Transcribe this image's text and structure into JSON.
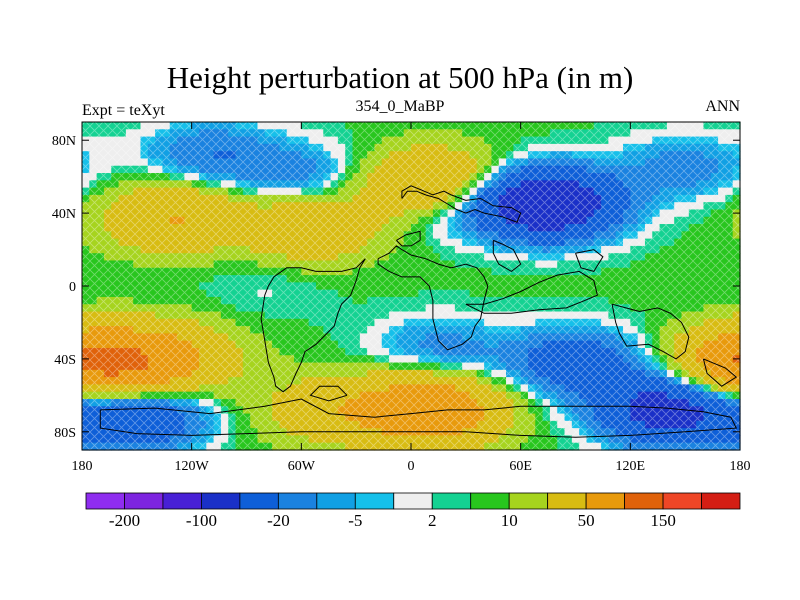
{
  "chart_data": {
    "type": "heatmap",
    "title": "Height perturbation at 500 hPa (in m)",
    "left_string": "Expt = teXyt",
    "center_string": "354_0_MaBP",
    "right_string": "ANN",
    "x_ticks": [
      {
        "value": -180,
        "label": "180"
      },
      {
        "value": -120,
        "label": "120W"
      },
      {
        "value": -60,
        "label": "60W"
      },
      {
        "value": 0,
        "label": "0"
      },
      {
        "value": 60,
        "label": "60E"
      },
      {
        "value": 120,
        "label": "120E"
      },
      {
        "value": 180,
        "label": "180"
      }
    ],
    "y_ticks": [
      {
        "value": 80,
        "label": "80N"
      },
      {
        "value": 40,
        "label": "40N"
      },
      {
        "value": 0,
        "label": "0"
      },
      {
        "value": -40,
        "label": "40S"
      },
      {
        "value": -80,
        "label": "80S"
      }
    ],
    "xlim": [
      -180,
      180
    ],
    "ylim": [
      -90,
      90
    ],
    "colorbar": {
      "levels": [
        -200,
        -150,
        -100,
        -50,
        -20,
        -10,
        -5,
        -2,
        2,
        5,
        10,
        20,
        50,
        100,
        150,
        200
      ],
      "labels": [
        {
          "level": -200,
          "label": "-200"
        },
        {
          "level": -100,
          "label": "-100"
        },
        {
          "level": -20,
          "label": "-20"
        },
        {
          "level": -5,
          "label": "-5"
        },
        {
          "level": 2,
          "label": "2"
        },
        {
          "level": 10,
          "label": "10"
        },
        {
          "level": 50,
          "label": "50"
        },
        {
          "level": 150,
          "label": "150"
        }
      ],
      "colors": [
        "#8f2df0",
        "#7d24e0",
        "#4820d6",
        "#1a30c8",
        "#0e5fd8",
        "#1a82e0",
        "#11a0e4",
        "#16c0ea",
        "#eeeeee",
        "#14d292",
        "#28c61e",
        "#a6d41e",
        "#d8bc12",
        "#e89a0c",
        "#e0620a",
        "#ee4626",
        "#d41e14"
      ]
    },
    "highs": [
      {
        "lon": -130,
        "lat": 38,
        "value": 45
      },
      {
        "lon": -55,
        "lat": 32,
        "value": 38
      },
      {
        "lon": 12,
        "lat": 55,
        "value": 70
      },
      {
        "lon": -165,
        "lat": -42,
        "value": 70
      },
      {
        "lon": -130,
        "lat": -40,
        "value": 40
      },
      {
        "lon": 10,
        "lat": -68,
        "value": 85
      },
      {
        "lon": -45,
        "lat": -68,
        "value": 30
      },
      {
        "lon": 178,
        "lat": -42,
        "value": 40
      }
    ],
    "lows": [
      {
        "lon": 75,
        "lat": 45,
        "value": -100
      },
      {
        "lon": 20,
        "lat": 48,
        "value": -35
      },
      {
        "lon": -110,
        "lat": 72,
        "value": -25
      },
      {
        "lon": -60,
        "lat": 60,
        "value": -20
      },
      {
        "lon": 150,
        "lat": 65,
        "value": -20
      },
      {
        "lon": 90,
        "lat": -42,
        "value": -40
      },
      {
        "lon": 15,
        "lat": -35,
        "value": -20
      },
      {
        "lon": -150,
        "lat": -72,
        "value": -50
      },
      {
        "lon": 140,
        "lat": -68,
        "value": -75
      },
      {
        "lon": -80,
        "lat": 0,
        "value": -5
      }
    ],
    "background": 6,
    "coastlines": [
      [
        [
          -5,
          48
        ],
        [
          -2,
          52
        ],
        [
          3,
          52
        ],
        [
          8,
          50
        ],
        [
          15,
          48
        ],
        [
          20,
          45
        ],
        [
          25,
          42
        ],
        [
          30,
          40
        ],
        [
          35,
          42
        ],
        [
          40,
          40
        ],
        [
          50,
          38
        ],
        [
          58,
          35
        ],
        [
          60,
          40
        ],
        [
          55,
          43
        ],
        [
          45,
          44
        ],
        [
          38,
          48
        ],
        [
          30,
          47
        ],
        [
          22,
          50
        ],
        [
          18,
          52
        ],
        [
          12,
          50
        ],
        [
          5,
          53
        ],
        [
          0,
          55
        ],
        [
          -5,
          52
        ],
        [
          -5,
          48
        ]
      ],
      [
        [
          -18,
          15
        ],
        [
          -12,
          18
        ],
        [
          -8,
          22
        ],
        [
          -5,
          20
        ],
        [
          0,
          17
        ],
        [
          8,
          15
        ],
        [
          15,
          12
        ],
        [
          22,
          10
        ],
        [
          30,
          12
        ],
        [
          36,
          10
        ],
        [
          40,
          5
        ],
        [
          42,
          0
        ],
        [
          40,
          -8
        ],
        [
          38,
          -18
        ],
        [
          35,
          -22
        ],
        [
          33,
          -28
        ],
        [
          28,
          -32
        ],
        [
          20,
          -35
        ],
        [
          15,
          -30
        ],
        [
          12,
          -18
        ],
        [
          12,
          -8
        ],
        [
          10,
          0
        ],
        [
          5,
          5
        ],
        [
          -5,
          5
        ],
        [
          -12,
          8
        ],
        [
          -18,
          12
        ],
        [
          -18,
          15
        ]
      ],
      [
        [
          -25,
          15
        ],
        [
          -28,
          10
        ],
        [
          -30,
          3
        ],
        [
          -33,
          -5
        ],
        [
          -38,
          -10
        ],
        [
          -40,
          -15
        ],
        [
          -42,
          -22
        ],
        [
          -48,
          -28
        ],
        [
          -52,
          -32
        ],
        [
          -58,
          -36
        ],
        [
          -60,
          -42
        ],
        [
          -63,
          -48
        ],
        [
          -66,
          -55
        ],
        [
          -70,
          -58
        ],
        [
          -74,
          -55
        ],
        [
          -75,
          -50
        ],
        [
          -78,
          -42
        ],
        [
          -80,
          -30
        ],
        [
          -82,
          -18
        ],
        [
          -80,
          -5
        ],
        [
          -78,
          0
        ],
        [
          -75,
          5
        ],
        [
          -68,
          10
        ],
        [
          -60,
          10
        ],
        [
          -52,
          8
        ],
        [
          -45,
          8
        ],
        [
          -38,
          8
        ],
        [
          -30,
          10
        ],
        [
          -25,
          15
        ]
      ],
      [
        [
          -8,
          25
        ],
        [
          -3,
          28
        ],
        [
          5,
          30
        ],
        [
          5,
          25
        ],
        [
          0,
          22
        ],
        [
          -5,
          22
        ],
        [
          -8,
          25
        ]
      ],
      [
        [
          45,
          25
        ],
        [
          50,
          23
        ],
        [
          56,
          20
        ],
        [
          60,
          12
        ],
        [
          55,
          8
        ],
        [
          48,
          12
        ],
        [
          45,
          18
        ],
        [
          45,
          25
        ]
      ],
      [
        [
          90,
          18
        ],
        [
          100,
          20
        ],
        [
          105,
          16
        ],
        [
          100,
          8
        ],
        [
          93,
          10
        ],
        [
          90,
          18
        ]
      ],
      [
        [
          110,
          -10
        ],
        [
          125,
          -14
        ],
        [
          135,
          -12
        ],
        [
          142,
          -15
        ],
        [
          148,
          -20
        ],
        [
          152,
          -28
        ],
        [
          150,
          -36
        ],
        [
          145,
          -40
        ],
        [
          138,
          -36
        ],
        [
          130,
          -32
        ],
        [
          118,
          -33
        ],
        [
          114,
          -26
        ],
        [
          112,
          -20
        ],
        [
          110,
          -10
        ]
      ],
      [
        [
          30,
          -10
        ],
        [
          40,
          -10
        ],
        [
          50,
          -7
        ],
        [
          60,
          -3
        ],
        [
          70,
          2
        ],
        [
          80,
          6
        ],
        [
          92,
          8
        ],
        [
          100,
          3
        ],
        [
          102,
          -5
        ],
        [
          95,
          -8
        ],
        [
          85,
          -12
        ],
        [
          70,
          -13
        ],
        [
          55,
          -15
        ],
        [
          40,
          -15
        ],
        [
          30,
          -10
        ]
      ],
      [
        [
          -170,
          -68
        ],
        [
          -140,
          -67
        ],
        [
          -110,
          -70
        ],
        [
          -80,
          -66
        ],
        [
          -60,
          -62
        ],
        [
          -45,
          -70
        ],
        [
          -20,
          -72
        ],
        [
          0,
          -70
        ],
        [
          20,
          -68
        ],
        [
          40,
          -68
        ],
        [
          60,
          -66
        ],
        [
          80,
          -66
        ],
        [
          100,
          -66
        ],
        [
          120,
          -66
        ],
        [
          140,
          -67
        ],
        [
          160,
          -69
        ],
        [
          175,
          -72
        ],
        [
          178,
          -78
        ],
        [
          150,
          -80
        ],
        [
          120,
          -82
        ],
        [
          90,
          -83
        ],
        [
          60,
          -82
        ],
        [
          30,
          -80
        ],
        [
          0,
          -80
        ],
        [
          -30,
          -80
        ],
        [
          -60,
          -80
        ],
        [
          -90,
          -81
        ],
        [
          -120,
          -82
        ],
        [
          -150,
          -81
        ],
        [
          -170,
          -78
        ],
        [
          -170,
          -68
        ]
      ],
      [
        [
          -35,
          -60
        ],
        [
          -40,
          -55
        ],
        [
          -50,
          -55
        ],
        [
          -55,
          -60
        ],
        [
          -45,
          -63
        ],
        [
          -35,
          -60
        ]
      ],
      [
        [
          160,
          -40
        ],
        [
          172,
          -45
        ],
        [
          178,
          -50
        ],
        [
          170,
          -55
        ],
        [
          162,
          -48
        ],
        [
          160,
          -40
        ]
      ]
    ]
  }
}
